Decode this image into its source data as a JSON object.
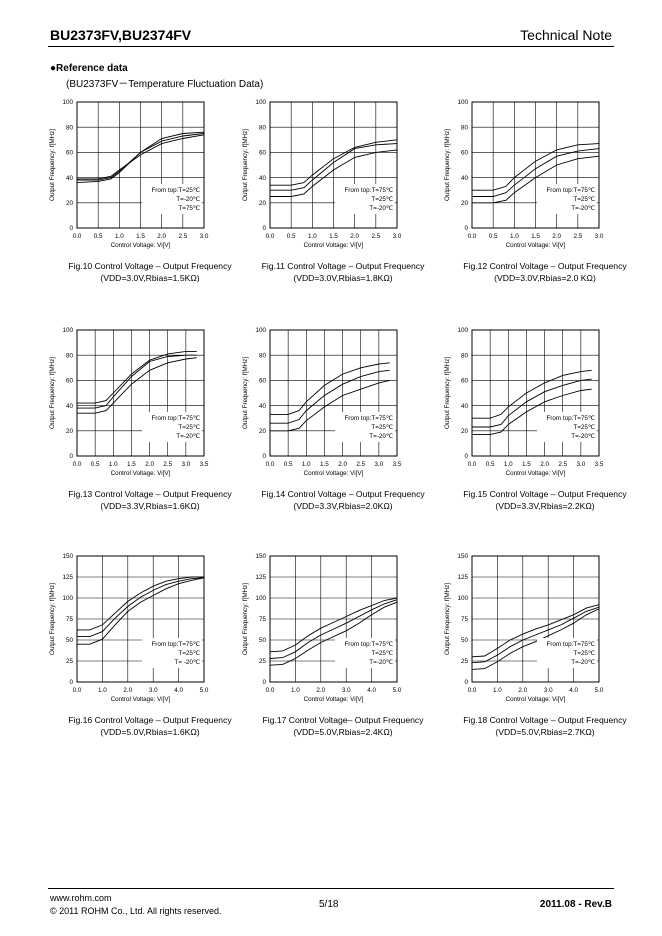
{
  "header": {
    "title": "BU2373FV,BU2374FV",
    "note": "Technical Note"
  },
  "section": {
    "title": "●Reference data",
    "subtitle": "(BU2373FV－Temperature Fluctuation Data)"
  },
  "footer": {
    "url": "www.rohm.com",
    "copyright": "© 2011 ROHM Co., Ltd. All rights reserved.",
    "page": "5/18",
    "revision": "2011.08  -  Rev.B"
  },
  "chart_data": [
    {
      "type": "line",
      "title": "Fig.10 Control Voltage – Output Frequency",
      "subtitle": "(VDD=3.0V,Rbias=1.5KΩ)",
      "xlabel": "Control Voltage: Vi[V]",
      "ylabel": "Output Frequency: f[MHz]",
      "xlim": [
        0,
        3
      ],
      "ylim": [
        0,
        100
      ],
      "xticks": [
        "0.0",
        "0.5",
        "1.0",
        "1.5",
        "2.0",
        "2.5",
        "3.0"
      ],
      "yticks": [
        "0",
        "20",
        "40",
        "60",
        "80",
        "100"
      ],
      "grid": true,
      "annotation": [
        "From top:T=25℃",
        "T=-20℃",
        "T=75℃"
      ],
      "series": [
        {
          "x": [
            0,
            0.5,
            0.8,
            1.0,
            1.5,
            2.0,
            2.5,
            3.0
          ],
          "y": [
            38,
            38,
            40,
            45,
            60,
            71,
            75,
            76
          ]
        },
        {
          "x": [
            0,
            0.5,
            0.8,
            1.0,
            1.5,
            2.0,
            2.5,
            3.0
          ],
          "y": [
            36,
            37,
            39,
            44,
            60,
            69,
            73,
            75
          ]
        },
        {
          "x": [
            0,
            0.5,
            0.8,
            1.0,
            1.5,
            2.0,
            2.5,
            3.0
          ],
          "y": [
            39,
            39,
            41,
            46,
            58,
            67,
            71,
            74
          ]
        }
      ]
    },
    {
      "type": "line",
      "title": "Fig.11 Control Voltage – Output Frequency",
      "subtitle": "(VDD=3.0V,Rbias=1.8KΩ)",
      "xlabel": "Control Voltage: Vi[V]",
      "ylabel": "Output Frequency: f[MHz]",
      "xlim": [
        0,
        3
      ],
      "ylim": [
        0,
        100
      ],
      "xticks": [
        "0.0",
        "0.5",
        "1.0",
        "1.5",
        "2.0",
        "2.5",
        "3.0"
      ],
      "yticks": [
        "0",
        "20",
        "40",
        "60",
        "80",
        "100"
      ],
      "grid": true,
      "annotation": [
        "From top:T=75℃",
        "T=25℃",
        "T=-20℃"
      ],
      "series": [
        {
          "x": [
            0,
            0.5,
            0.8,
            1.0,
            1.5,
            2.0,
            2.5,
            3.0
          ],
          "y": [
            34,
            34,
            36,
            42,
            55,
            64,
            68,
            70
          ]
        },
        {
          "x": [
            0,
            0.5,
            0.8,
            1.0,
            1.5,
            2.0,
            2.5,
            3.0
          ],
          "y": [
            30,
            30,
            32,
            38,
            52,
            63,
            66,
            67
          ]
        },
        {
          "x": [
            0,
            0.5,
            0.8,
            1.0,
            1.5,
            2.0,
            2.5,
            3.0
          ],
          "y": [
            25,
            25,
            27,
            33,
            46,
            56,
            60,
            62
          ]
        }
      ]
    },
    {
      "type": "line",
      "title": "Fig.12 Control Voltage – Output Frequency",
      "subtitle": "(VDD=3.0V,Rbias=2.0 KΩ)",
      "xlabel": "Control Voltage: Vi[V]",
      "ylabel": "Output Frequency: f[MHz]",
      "xlim": [
        0,
        3
      ],
      "ylim": [
        0,
        100
      ],
      "xticks": [
        "0.0",
        "0.5",
        "1.0",
        "1.5",
        "2.0",
        "2.5",
        "3.0"
      ],
      "yticks": [
        "0",
        "20",
        "40",
        "60",
        "80",
        "100"
      ],
      "grid": true,
      "annotation": [
        "From top:T=75℃",
        "T=25℃",
        "T=-20℃"
      ],
      "series": [
        {
          "x": [
            0,
            0.5,
            0.8,
            1.0,
            1.5,
            2.0,
            2.5,
            3.0
          ],
          "y": [
            30,
            30,
            33,
            40,
            53,
            62,
            66,
            67
          ]
        },
        {
          "x": [
            0,
            0.5,
            0.8,
            1.0,
            1.5,
            2.0,
            2.5,
            3.0
          ],
          "y": [
            25,
            25,
            28,
            34,
            47,
            57,
            61,
            63
          ]
        },
        {
          "x": [
            0,
            0.5,
            0.8,
            1.0,
            1.5,
            2.0,
            2.5,
            3.0
          ],
          "y": [
            20,
            20,
            22,
            28,
            40,
            50,
            55,
            57
          ]
        }
      ]
    },
    {
      "type": "line",
      "title": "Fig.13 Control Voltage – Output Frequency",
      "subtitle": "(VDD=3.3V,Rbias=1.6KΩ)",
      "xlabel": "Control Voltage: Vi[V]",
      "ylabel": "Output Frequency: f[MHz]",
      "xlim": [
        0,
        3.5
      ],
      "ylim": [
        0,
        100
      ],
      "xticks": [
        "0.0",
        "0.5",
        "1.0",
        "1.5",
        "2.0",
        "2.5",
        "3.0",
        "3.5"
      ],
      "yticks": [
        "0",
        "20",
        "40",
        "60",
        "80",
        "100"
      ],
      "grid": true,
      "annotation": [
        "From top:T=75℃",
        "T=25℃",
        "T=-20℃"
      ],
      "series": [
        {
          "x": [
            0,
            0.5,
            0.8,
            1.0,
            1.5,
            2.0,
            2.5,
            3.0,
            3.3
          ],
          "y": [
            42,
            42,
            44,
            50,
            65,
            76,
            81,
            83,
            83
          ]
        },
        {
          "x": [
            0,
            0.5,
            0.8,
            1.0,
            1.5,
            2.0,
            2.5,
            3.0,
            3.3
          ],
          "y": [
            38,
            38,
            40,
            47,
            63,
            75,
            79,
            80,
            80
          ]
        },
        {
          "x": [
            0,
            0.5,
            0.8,
            1.0,
            1.5,
            2.0,
            2.5,
            3.0,
            3.3
          ],
          "y": [
            34,
            34,
            36,
            42,
            57,
            68,
            74,
            77,
            78
          ]
        }
      ]
    },
    {
      "type": "line",
      "title": "Fig.14 Control Voltage – Output Frequency",
      "subtitle": "(VDD=3.3V,Rbias=2.0KΩ)",
      "xlabel": "Control Voltage: Vi[V]",
      "ylabel": "Output Frequency: f[MHz]",
      "xlim": [
        0,
        3.5
      ],
      "ylim": [
        0,
        100
      ],
      "xticks": [
        "0.0",
        "0.5",
        "1.0",
        "1.5",
        "2.0",
        "2.5",
        "3.0",
        "3.5"
      ],
      "yticks": [
        "0",
        "20",
        "40",
        "60",
        "80",
        "100"
      ],
      "grid": true,
      "annotation": [
        "From top:T=75℃",
        "T=25℃",
        "T=-20℃"
      ],
      "series": [
        {
          "x": [
            0,
            0.5,
            0.8,
            1.0,
            1.5,
            2.0,
            2.5,
            3.0,
            3.3
          ],
          "y": [
            33,
            33,
            36,
            43,
            56,
            65,
            70,
            73,
            74
          ]
        },
        {
          "x": [
            0,
            0.5,
            0.8,
            1.0,
            1.5,
            2.0,
            2.5,
            3.0,
            3.3
          ],
          "y": [
            26,
            26,
            29,
            36,
            48,
            57,
            63,
            67,
            68
          ]
        },
        {
          "x": [
            0,
            0.5,
            0.8,
            1.0,
            1.5,
            2.0,
            2.5,
            3.0,
            3.3
          ],
          "y": [
            20,
            20,
            22,
            28,
            39,
            48,
            53,
            58,
            60
          ]
        }
      ]
    },
    {
      "type": "line",
      "title": "Fig.15 Control Voltage – Output Frequency",
      "subtitle": "(VDD=3.3V,Rbias=2.2KΩ)",
      "xlabel": "Control Voltage: Vi[V]",
      "ylabel": "Output Frequency: f[MHz]",
      "xlim": [
        0,
        3.5
      ],
      "ylim": [
        0,
        100
      ],
      "xticks": [
        "0.0",
        "0.5",
        "1.0",
        "1.5",
        "2.0",
        "2.5",
        "3.0",
        "3.5"
      ],
      "yticks": [
        "0",
        "20",
        "40",
        "60",
        "80",
        "100"
      ],
      "grid": true,
      "annotation": [
        "From top:T=75℃",
        "T=25℃",
        "T=-20℃"
      ],
      "series": [
        {
          "x": [
            0,
            0.5,
            0.8,
            1.0,
            1.5,
            2.0,
            2.5,
            3.0,
            3.3
          ],
          "y": [
            30,
            30,
            33,
            39,
            50,
            58,
            64,
            67,
            68
          ]
        },
        {
          "x": [
            0,
            0.5,
            0.8,
            1.0,
            1.5,
            2.0,
            2.5,
            3.0,
            3.3
          ],
          "y": [
            23,
            23,
            25,
            32,
            43,
            51,
            56,
            60,
            61
          ]
        },
        {
          "x": [
            0,
            0.5,
            0.8,
            1.0,
            1.5,
            2.0,
            2.5,
            3.0,
            3.3
          ],
          "y": [
            17,
            17,
            19,
            25,
            35,
            43,
            48,
            52,
            53
          ]
        }
      ]
    },
    {
      "type": "line",
      "title": "Fig.16 Control Voltage – Output Frequency",
      "subtitle": "(VDD=5.0V,Rbias=1.6KΩ)",
      "xlabel": "Control Voltage: Vi[V]",
      "ylabel": "Output Frequency: f[MHz]",
      "xlim": [
        0,
        5
      ],
      "ylim": [
        0,
        150
      ],
      "xticks": [
        "0.0",
        "1.0",
        "2.0",
        "3.0",
        "4.0",
        "5.0"
      ],
      "yticks": [
        "0",
        "25",
        "50",
        "75",
        "100",
        "125",
        "150"
      ],
      "grid": true,
      "annotation": [
        "From top:T=75℃",
        "T=25℃",
        "T= -20℃"
      ],
      "series": [
        {
          "x": [
            0,
            0.5,
            1.0,
            1.5,
            2.0,
            2.5,
            3.0,
            3.5,
            4.0,
            4.5,
            5.0
          ],
          "y": [
            62,
            62,
            68,
            82,
            96,
            106,
            114,
            120,
            123,
            125,
            125
          ]
        },
        {
          "x": [
            0,
            0.5,
            1.0,
            1.5,
            2.0,
            2.5,
            3.0,
            3.5,
            4.0,
            4.5,
            5.0
          ],
          "y": [
            54,
            54,
            60,
            76,
            90,
            101,
            109,
            116,
            120,
            123,
            124
          ]
        },
        {
          "x": [
            0,
            0.5,
            1.0,
            1.5,
            2.0,
            2.5,
            3.0,
            3.5,
            4.0,
            4.5,
            5.0
          ],
          "y": [
            45,
            45,
            51,
            68,
            84,
            95,
            103,
            111,
            117,
            121,
            124
          ]
        }
      ]
    },
    {
      "type": "line",
      "title": "Fig.17 Control Voltage– Output Frequency",
      "subtitle": "(VDD=5.0V,Rbias=2.4KΩ)",
      "xlabel": "Control Voltage: Vi[V]",
      "ylabel": "Output Frequency: f[MHz]",
      "xlim": [
        0,
        5
      ],
      "ylim": [
        0,
        150
      ],
      "xticks": [
        "0.0",
        "1.0",
        "2.0",
        "3.0",
        "4.0",
        "5.0"
      ],
      "yticks": [
        "0",
        "25",
        "50",
        "75",
        "100",
        "125",
        "150"
      ],
      "grid": true,
      "annotation": [
        "From top:T=75℃",
        "T=25℃",
        "T=-20℃"
      ],
      "series": [
        {
          "x": [
            0,
            0.5,
            1.0,
            1.5,
            2.0,
            2.5,
            3.0,
            3.5,
            4.0,
            4.5,
            5.0
          ],
          "y": [
            36,
            37,
            44,
            55,
            64,
            71,
            78,
            85,
            91,
            97,
            100
          ]
        },
        {
          "x": [
            0,
            0.5,
            1.0,
            1.5,
            2.0,
            2.5,
            3.0,
            3.5,
            4.0,
            4.5,
            5.0
          ],
          "y": [
            28,
            29,
            36,
            47,
            56,
            63,
            70,
            78,
            86,
            93,
            98
          ]
        },
        {
          "x": [
            0,
            0.5,
            1.0,
            1.5,
            2.0,
            2.5,
            3.0,
            3.5,
            4.0,
            4.5,
            5.0
          ],
          "y": [
            20,
            21,
            28,
            38,
            47,
            54,
            61,
            70,
            80,
            89,
            95
          ]
        }
      ]
    },
    {
      "type": "line",
      "title": "Fig.18 Control Voltage – Output Frequency",
      "subtitle": "(VDD=5.0V,Rbias=2.7KΩ)",
      "xlabel": "Control Voltage: Vi[V]",
      "ylabel": "Output Frequency: f[MHz]",
      "xlim": [
        0,
        5
      ],
      "ylim": [
        0,
        150
      ],
      "xticks": [
        "0.0",
        "1.0",
        "2.0",
        "3.0",
        "4.0",
        "5.0"
      ],
      "yticks": [
        "0",
        "25",
        "50",
        "75",
        "100",
        "125",
        "150"
      ],
      "grid": true,
      "annotation": [
        "From top:T=75℃",
        "T=25℃",
        "T=-20℃"
      ],
      "series": [
        {
          "x": [
            0,
            0.5,
            1.0,
            1.5,
            2.0,
            2.5,
            3.0,
            3.5,
            4.0,
            4.5,
            5.0
          ],
          "y": [
            30,
            31,
            40,
            50,
            57,
            63,
            68,
            74,
            80,
            88,
            92
          ]
        },
        {
          "x": [
            0,
            0.5,
            1.0,
            1.5,
            2.0,
            2.5,
            3.0,
            3.5,
            4.0,
            4.5,
            5.0
          ],
          "y": [
            23,
            24,
            32,
            42,
            50,
            56,
            62,
            68,
            76,
            84,
            89
          ]
        },
        {
          "x": [
            0,
            0.5,
            1.0,
            1.5,
            2.0,
            2.5,
            3.0,
            3.5,
            4.0,
            4.5,
            5.0
          ],
          "y": [
            15,
            16,
            24,
            34,
            42,
            48,
            55,
            62,
            70,
            80,
            87
          ]
        }
      ]
    }
  ]
}
